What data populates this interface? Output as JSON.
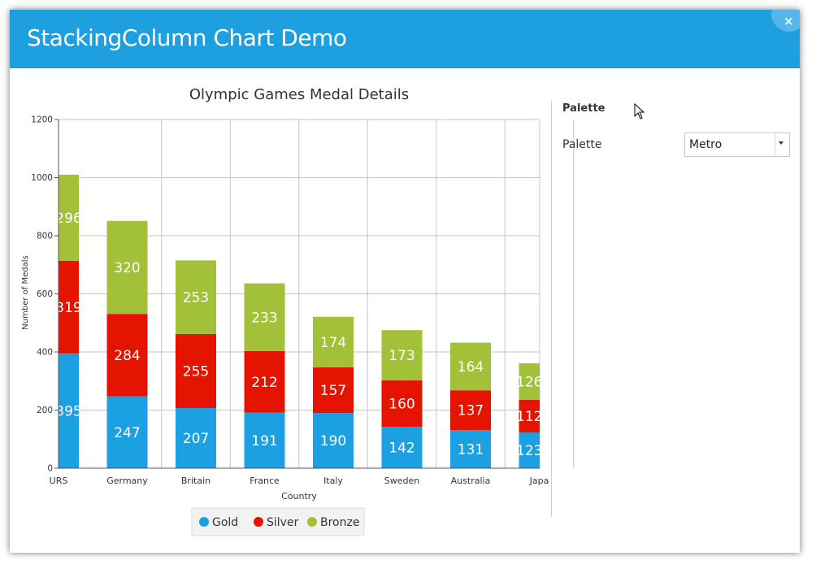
{
  "window": {
    "title": "StackingColumn Chart Demo",
    "close_glyph": "×",
    "accent_color": "#1e9fe0"
  },
  "settings": {
    "heading": "Palette",
    "palette_label": "Palette",
    "palette_value": "Metro"
  },
  "chart_data": {
    "type": "bar",
    "stacked": true,
    "title": "Olympic Games Medal Details",
    "xlabel": "Country",
    "ylabel": "Number of Medals",
    "ylim": [
      0,
      1200
    ],
    "yticks": [
      0,
      200,
      400,
      600,
      800,
      1000,
      1200
    ],
    "grid": true,
    "legend_position": "bottom",
    "categories": [
      "URS",
      "Germany",
      "Britain",
      "France",
      "Italy",
      "Sweden",
      "Australia",
      "Japa"
    ],
    "series": [
      {
        "name": "Gold",
        "color": "#1ba1e2",
        "values": [
          395,
          247,
          207,
          191,
          190,
          142,
          131,
          123
        ]
      },
      {
        "name": "Silver",
        "color": "#e51400",
        "values": [
          319,
          284,
          255,
          212,
          157,
          160,
          137,
          112
        ]
      },
      {
        "name": "Bronze",
        "color": "#a2c139",
        "values": [
          296,
          320,
          253,
          233,
          174,
          173,
          164,
          126
        ]
      }
    ]
  }
}
